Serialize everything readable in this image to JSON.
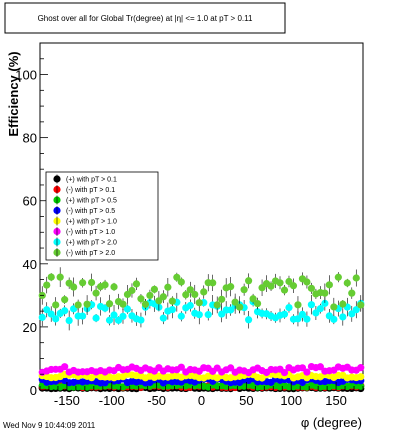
{
  "chart_data": {
    "type": "scatter",
    "title": "Ghost over all for Global Tr(degree) at |η| <= 1.0 at pT > 0.11",
    "xlabel": "φ (degree)",
    "ylabel": "Efficiency (%)",
    "xlim": [
      -180,
      180
    ],
    "ylim": [
      0,
      110
    ],
    "x_ticks": [
      -150,
      -100,
      -50,
      0,
      50,
      100,
      150
    ],
    "y_ticks": [
      0,
      20,
      40,
      60,
      80,
      100
    ],
    "grid": false,
    "legend_position": "left-middle",
    "footer": "Wed Nov  9 10:44:09 2011",
    "series": [
      {
        "name": "(+) with pT > 0.1",
        "color": "#000000",
        "band": [
          0.4,
          0.8
        ]
      },
      {
        "name": "(-) with pT > 0.1",
        "color": "#ff0000",
        "band": [
          0.8,
          1.4
        ]
      },
      {
        "name": "(+) with pT > 0.5",
        "color": "#00cc00",
        "band": [
          0.9,
          1.6
        ]
      },
      {
        "name": "(-) with pT > 0.5",
        "color": "#0000ff",
        "band": [
          2.2,
          3.6
        ]
      },
      {
        "name": "(+) with pT > 1.0",
        "color": "#ffff00",
        "band": [
          3.8,
          5.0
        ]
      },
      {
        "name": "(-) with pT > 1.0",
        "color": "#ff00ff",
        "band": [
          5.5,
          7.5
        ]
      },
      {
        "name": "(+) with pT > 2.0",
        "color": "#00ffff",
        "band": [
          22,
          28
        ]
      },
      {
        "name": "(-) with pT > 2.0",
        "color": "#66cc33",
        "band": [
          26,
          36
        ]
      }
    ]
  }
}
